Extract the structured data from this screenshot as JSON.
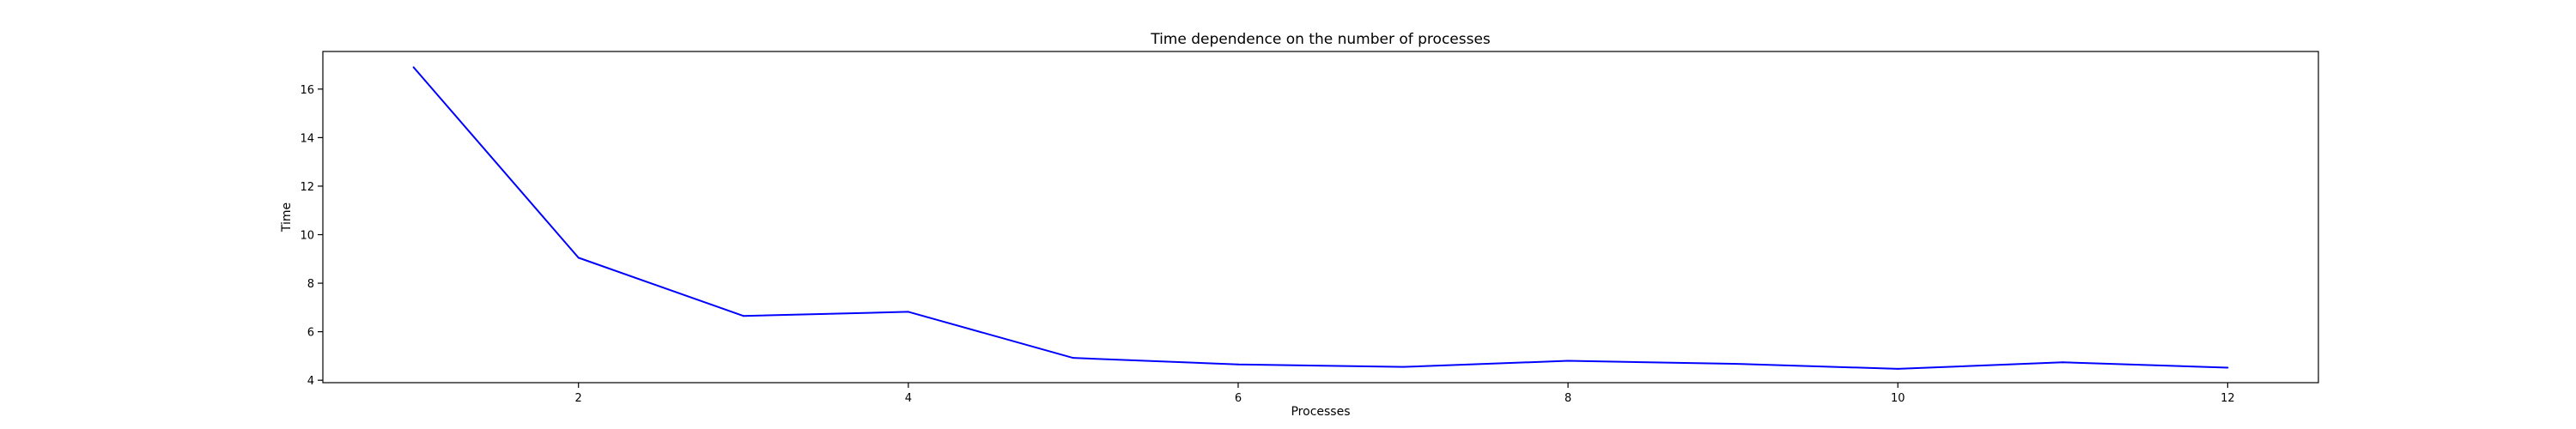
{
  "chart_data": {
    "type": "line",
    "title": "Time dependence on the number of processes",
    "xlabel": "Processes",
    "ylabel": "Time",
    "xlim": [
      0.45,
      12.55
    ],
    "ylim": [
      3.9,
      17.55
    ],
    "xticks": [
      2,
      4,
      6,
      8,
      10,
      12
    ],
    "yticks": [
      4,
      6,
      8,
      10,
      12,
      14,
      16
    ],
    "grid": false,
    "series": [
      {
        "color": "#0000ff",
        "x": [
          1,
          2,
          3,
          4,
          5,
          6,
          7,
          8,
          9,
          10,
          11,
          12
        ],
        "y": [
          16.9,
          9.05,
          6.65,
          6.82,
          4.92,
          4.65,
          4.55,
          4.8,
          4.68,
          4.47,
          4.74,
          4.52
        ]
      }
    ]
  }
}
